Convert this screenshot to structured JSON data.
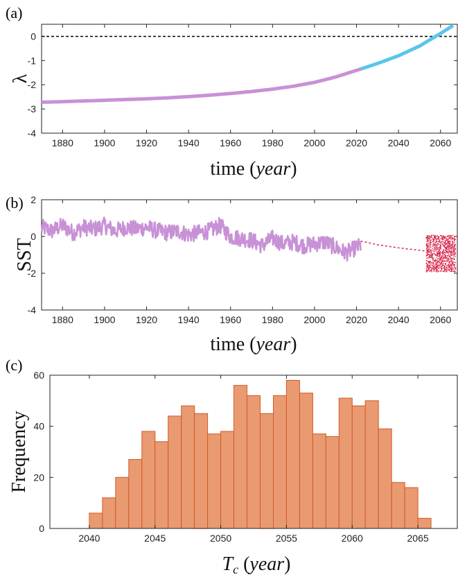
{
  "chart_data": [
    {
      "panel": "(a)",
      "type": "line",
      "xlabel": "time",
      "xlabel_unit": "year",
      "ylabel": "λ",
      "xlim": [
        1870,
        2068
      ],
      "ylim": [
        -4,
        0.5
      ],
      "xticks": [
        1880,
        1900,
        1920,
        1940,
        1960,
        1980,
        2000,
        2020,
        2040,
        2060
      ],
      "yticks": [
        0,
        -1,
        -2,
        -3,
        -4
      ],
      "reference_line": {
        "y": 0,
        "style": "dashed",
        "color": "#000000"
      },
      "series": [
        {
          "color": "#c891d6",
          "style": "solid",
          "x": [
            1870,
            1880,
            1890,
            1900,
            1910,
            1920,
            1930,
            1940,
            1950,
            1960,
            1970,
            1980,
            1990,
            2000,
            2010,
            2022
          ],
          "y": [
            -2.72,
            -2.7,
            -2.67,
            -2.64,
            -2.61,
            -2.58,
            -2.54,
            -2.49,
            -2.43,
            -2.36,
            -2.28,
            -2.18,
            -2.06,
            -1.9,
            -1.68,
            -1.35
          ]
        },
        {
          "color": "#5bc5ea",
          "style": "solid",
          "x": [
            2022,
            2030,
            2040,
            2050,
            2060,
            2066
          ],
          "y": [
            -1.35,
            -1.12,
            -0.8,
            -0.4,
            0.12,
            0.45
          ]
        }
      ]
    },
    {
      "panel": "(b)",
      "type": "line",
      "xlabel": "time",
      "xlabel_unit": "year",
      "ylabel": "SST",
      "xlim": [
        1870,
        2068
      ],
      "ylim": [
        -4,
        2
      ],
      "xticks": [
        1880,
        1900,
        1920,
        1940,
        1960,
        1980,
        2000,
        2020,
        2040,
        2060
      ],
      "yticks": [
        2,
        0,
        -2,
        -4
      ],
      "series": [
        {
          "color": "#c891d6",
          "style": "solid",
          "x": [
            1870,
            1875,
            1880,
            1885,
            1890,
            1895,
            1900,
            1905,
            1910,
            1915,
            1920,
            1925,
            1930,
            1935,
            1940,
            1945,
            1950,
            1955,
            1960,
            1965,
            1970,
            1975,
            1980,
            1985,
            1990,
            1995,
            2000,
            2005,
            2010,
            2015,
            2020,
            2022
          ],
          "y": [
            0.5,
            0.3,
            0.6,
            0.2,
            0.5,
            0.4,
            0.6,
            0.3,
            0.5,
            0.4,
            0.5,
            0.3,
            0.2,
            0.3,
            0.1,
            0.2,
            0.3,
            0.6,
            0.0,
            -0.1,
            -0.2,
            -0.5,
            -0.1,
            -0.4,
            -0.3,
            -0.5,
            -0.4,
            -0.3,
            -0.6,
            -0.9,
            -0.6,
            -0.5
          ]
        },
        {
          "color": "#d8294c",
          "style": "dashed",
          "x": [
            2022,
            2030,
            2040,
            2050,
            2054
          ],
          "y": [
            -0.25,
            -0.45,
            -0.62,
            -0.75,
            -0.8
          ]
        },
        {
          "color": "#d8294c",
          "style": "scatter",
          "x_range": [
            2053,
            2067
          ],
          "y_range": [
            -1.9,
            0.1
          ]
        }
      ]
    },
    {
      "panel": "(c)",
      "type": "bar",
      "xlabel": "T_c",
      "xlabel_unit": "year",
      "ylabel": "Frequency",
      "xlim": [
        2037,
        2068
      ],
      "ylim": [
        0,
        60
      ],
      "xticks": [
        2040,
        2045,
        2050,
        2055,
        2060,
        2065
      ],
      "yticks": [
        0,
        20,
        40,
        60
      ],
      "bar_color": "#e99a70",
      "edge_color": "#d1592a",
      "bin_width": 1,
      "bin_starts": [
        2040,
        2041,
        2042,
        2043,
        2044,
        2045,
        2046,
        2047,
        2048,
        2049,
        2050,
        2051,
        2052,
        2053,
        2054,
        2055,
        2056,
        2057,
        2058,
        2059,
        2060,
        2061,
        2062,
        2063,
        2064,
        2065
      ],
      "values": [
        6,
        12,
        20,
        27,
        38,
        34,
        44,
        48,
        45,
        37,
        38,
        56,
        52,
        45,
        52,
        58,
        53,
        37,
        36,
        51,
        48,
        50,
        39,
        18,
        16,
        4
      ]
    }
  ]
}
